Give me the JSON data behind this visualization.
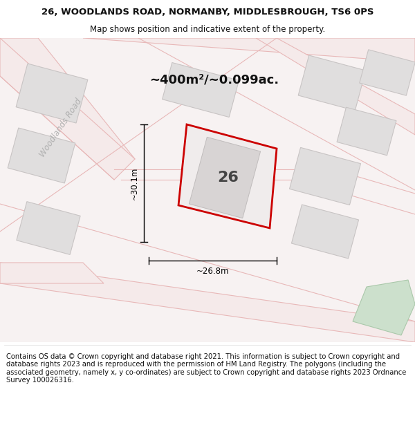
{
  "title_line1": "26, WOODLANDS ROAD, NORMANBY, MIDDLESBROUGH, TS6 0PS",
  "title_line2": "Map shows position and indicative extent of the property.",
  "area_text": "~400m²/~0.099ac.",
  "width_label": "~26.8m",
  "height_label": "~30.1m",
  "number_label": "26",
  "road_label": "Woodlands Road",
  "footer_text": "Contains OS data © Crown copyright and database right 2021. This information is subject to Crown copyright and database rights 2023 and is reproduced with the permission of HM Land Registry. The polygons (including the associated geometry, namely x, y co-ordinates) are subject to Crown copyright and database rights 2023 Ordnance Survey 100026316.",
  "bg_white": "#ffffff",
  "map_bg": "#f7f2f2",
  "road_fill": "#f5eaea",
  "road_edge": "#e8b8b8",
  "building_fill": "#e0dede",
  "building_edge": "#c8c4c4",
  "plot_fill": "#f0ecec",
  "plot_border": "#cc0000",
  "inner_fill": "#d8d4d4",
  "inner_edge": "#c0bcbc",
  "green_fill": "#cce0cc",
  "green_edge": "#aac8aa",
  "dim_color": "#000000",
  "text_color": "#111111",
  "road_label_color": "#b0b0b0",
  "fig_width": 6.0,
  "fig_height": 6.25,
  "dpi": 100
}
